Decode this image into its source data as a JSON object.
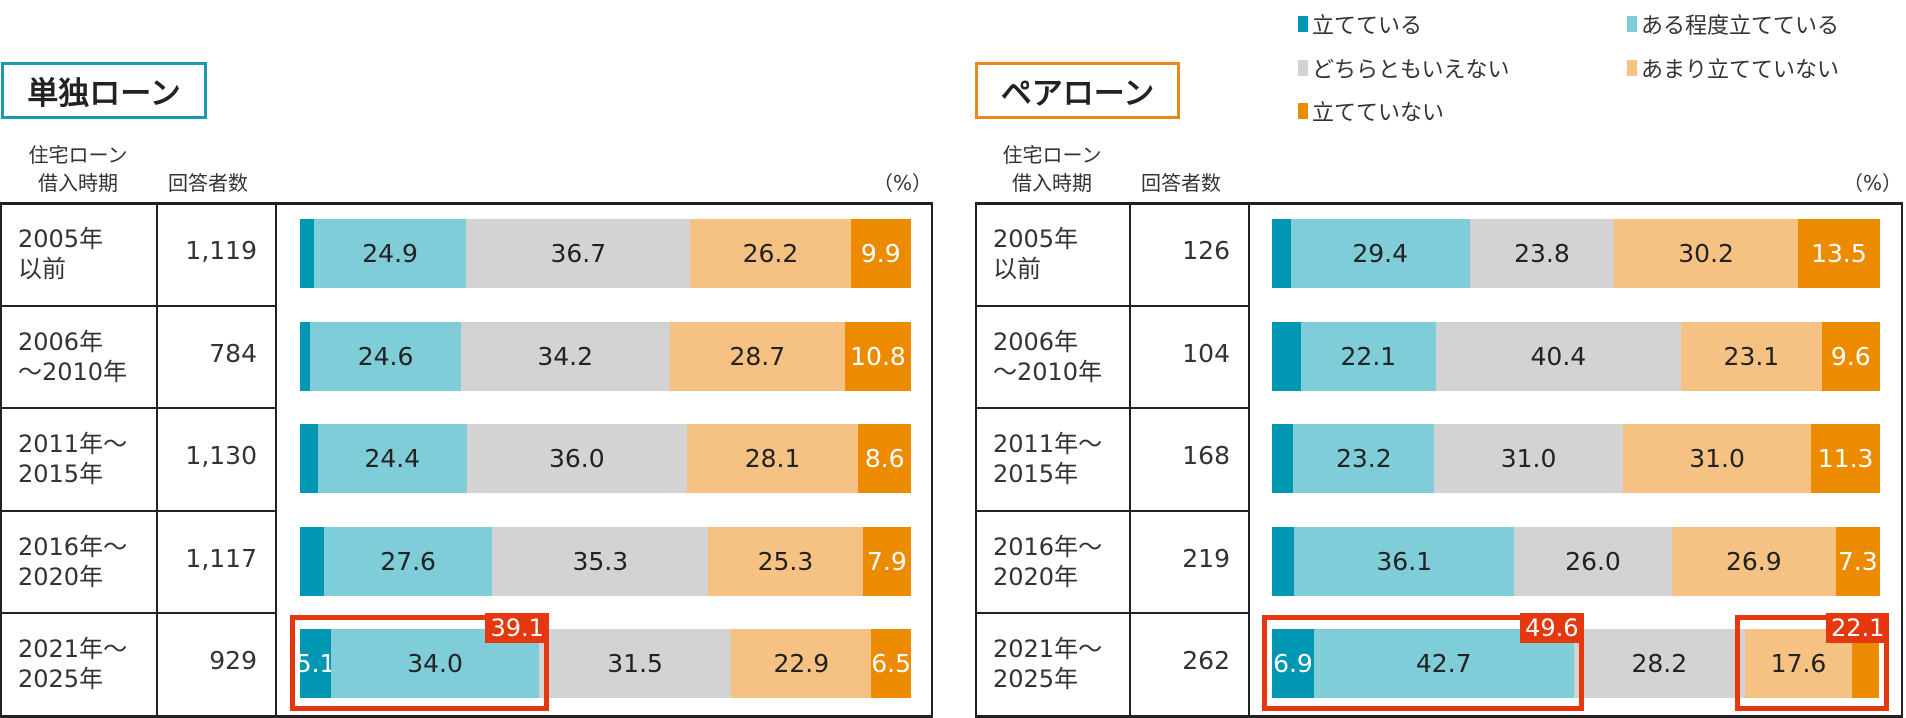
{
  "legend": [
    {
      "label": "立てている",
      "color": "#0097b2"
    },
    {
      "label": "ある程度立てている",
      "color": "#7fcdd8"
    },
    {
      "label": "どちらともいえない",
      "color": "#d3d3d3"
    },
    {
      "label": "あまり立てていない",
      "color": "#f5c283"
    },
    {
      "label": "立てていない",
      "color": "#ec8a00"
    }
  ],
  "highlight_color": "#e5380f",
  "chart_data": [
    {
      "type": "bar",
      "orientation": "horizontal",
      "stacked": true,
      "title": "単独ローン",
      "title_border_color": "#1a9aae",
      "col_period_header": [
        "住宅ローン",
        "借入時期"
      ],
      "col_count_header": "回答者数",
      "unit": "（%）",
      "xlim": [
        0,
        100
      ],
      "categories": [
        [
          "2005年",
          "以前"
        ],
        [
          "2006年",
          "～2010年"
        ],
        [
          "2011年～",
          "2015年"
        ],
        [
          "2016年～",
          "2020年"
        ],
        [
          "2021年～",
          "2025年"
        ]
      ],
      "counts": [
        "1,119",
        "784",
        "1,130",
        "1,117",
        "929"
      ],
      "series": [
        {
          "name": "立てている",
          "values": [
            2.3,
            1.7,
            2.9,
            3.9,
            5.1
          ],
          "labeled": [
            false,
            false,
            false,
            false,
            true
          ]
        },
        {
          "name": "ある程度立てている",
          "values": [
            24.9,
            24.6,
            24.4,
            27.6,
            34.0
          ]
        },
        {
          "name": "どちらともいえない",
          "values": [
            36.7,
            34.2,
            36.0,
            35.3,
            31.5
          ]
        },
        {
          "name": "あまり立てていない",
          "values": [
            26.2,
            28.7,
            28.1,
            25.3,
            22.9
          ]
        },
        {
          "name": "立てていない",
          "values": [
            9.9,
            10.8,
            8.6,
            7.9,
            6.5
          ]
        }
      ],
      "highlights": [
        {
          "row": 4,
          "series": [
            0,
            1
          ],
          "label": "39.1"
        }
      ]
    },
    {
      "type": "bar",
      "orientation": "horizontal",
      "stacked": true,
      "title": "ペアローン",
      "title_border_color": "#e88a1a",
      "col_period_header": [
        "住宅ローン",
        "借入時期"
      ],
      "col_count_header": "回答者数",
      "unit": "（%）",
      "xlim": [
        0,
        100
      ],
      "categories": [
        [
          "2005年",
          "以前"
        ],
        [
          "2006年",
          "～2010年"
        ],
        [
          "2011年～",
          "2015年"
        ],
        [
          "2016年～",
          "2020年"
        ],
        [
          "2021年～",
          "2025年"
        ]
      ],
      "counts": [
        "126",
        "104",
        "168",
        "219",
        "262"
      ],
      "series": [
        {
          "name": "立てている",
          "values": [
            3.1,
            4.8,
            3.5,
            3.7,
            6.9
          ],
          "labeled": [
            false,
            false,
            false,
            false,
            true
          ]
        },
        {
          "name": "ある程度立てている",
          "values": [
            29.4,
            22.1,
            23.2,
            36.1,
            42.7
          ]
        },
        {
          "name": "どちらともいえない",
          "values": [
            23.8,
            40.4,
            31.0,
            26.0,
            28.2
          ]
        },
        {
          "name": "あまり立てていない",
          "values": [
            30.2,
            23.1,
            31.0,
            26.9,
            17.6
          ]
        },
        {
          "name": "立てていない",
          "values": [
            13.5,
            9.6,
            11.3,
            7.3,
            4.5
          ],
          "labeled": [
            true,
            true,
            true,
            true,
            false
          ]
        }
      ],
      "highlights": [
        {
          "row": 4,
          "series": [
            0,
            1
          ],
          "label": "49.6"
        },
        {
          "row": 4,
          "series": [
            3,
            4
          ],
          "label": "22.1"
        }
      ]
    }
  ]
}
